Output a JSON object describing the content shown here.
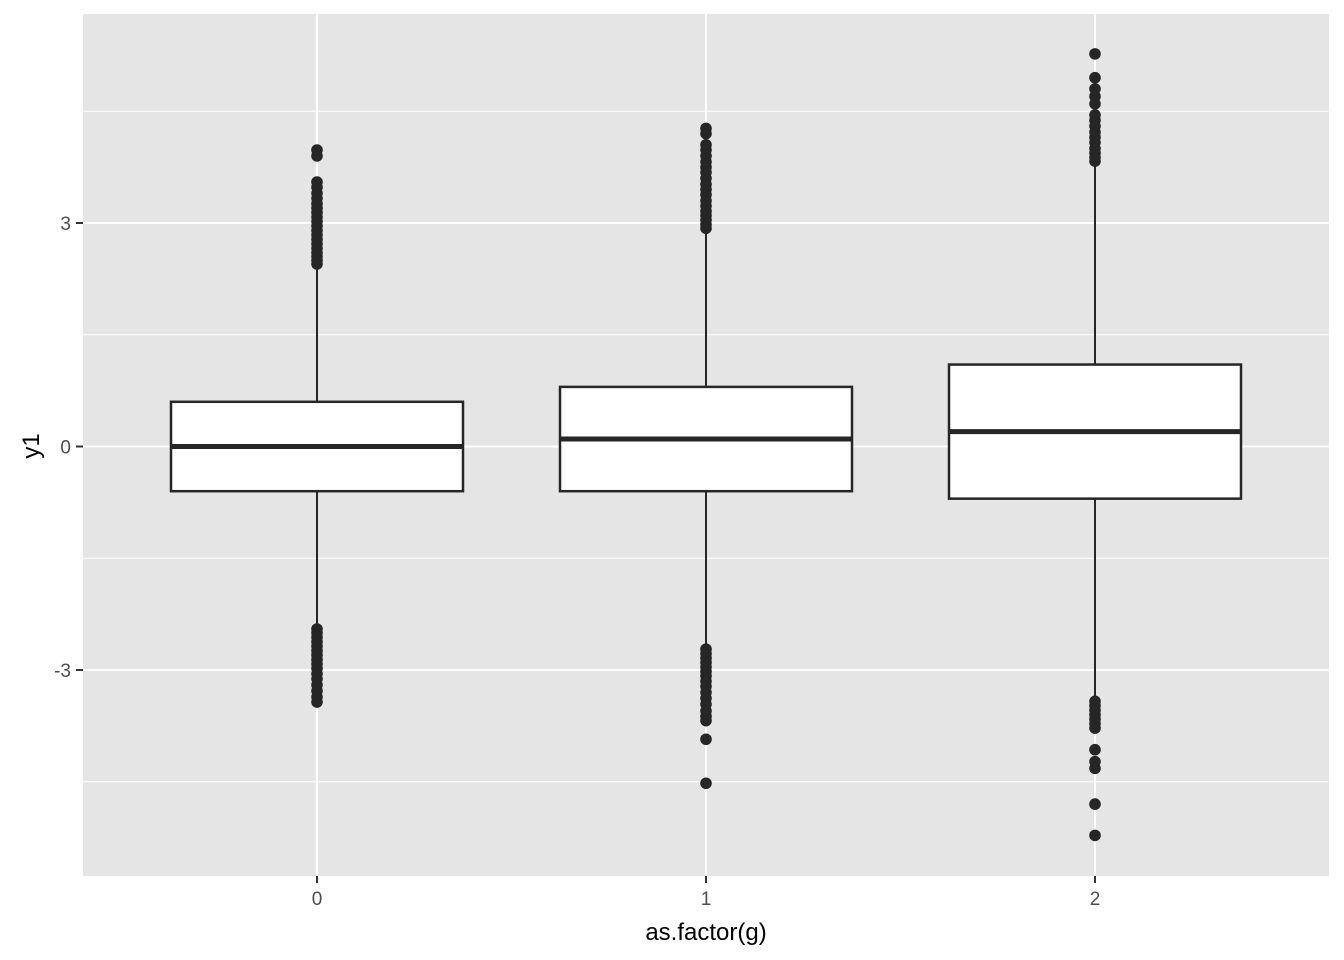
{
  "chart_data": {
    "type": "boxplot",
    "xlabel": "as.factor(g)",
    "ylabel": "y1",
    "categories": [
      "0",
      "1",
      "2"
    ],
    "ylim": [
      -5.7,
      5.8
    ],
    "y_ticks": [
      -3,
      0,
      3
    ],
    "y_tick_labels": [
      "-3",
      "0",
      "3"
    ],
    "grid": true,
    "legend": "none",
    "colors": {
      "panel_background": "#e5e5e5",
      "grid": "#ffffff",
      "box_fill": "#ffffff",
      "box_line": "#262626",
      "outlier": "#262626"
    },
    "boxes": [
      {
        "category": "0",
        "lower_whisker": -2.4,
        "q1": -0.6,
        "median": 0.0,
        "q3": 0.6,
        "upper_whisker": 2.4,
        "outliers": [
          3.98,
          3.9,
          3.55,
          3.48,
          3.4,
          3.33,
          3.26,
          3.2,
          3.14,
          3.08,
          3.02,
          2.96,
          2.9,
          2.84,
          2.78,
          2.72,
          2.66,
          2.6,
          2.55,
          2.5,
          2.45,
          -2.45,
          -2.5,
          -2.56,
          -2.62,
          -2.68,
          -2.74,
          -2.8,
          -2.86,
          -2.92,
          -2.98,
          -3.05,
          -3.12,
          -3.2,
          -3.28,
          -3.36,
          -3.43
        ]
      },
      {
        "category": "1",
        "lower_whisker": -2.7,
        "q1": -0.6,
        "median": 0.1,
        "q3": 0.8,
        "upper_whisker": 2.9,
        "outliers": [
          4.27,
          4.2,
          4.05,
          3.98,
          3.9,
          3.82,
          3.75,
          3.68,
          3.6,
          3.52,
          3.45,
          3.38,
          3.3,
          3.23,
          3.16,
          3.1,
          3.04,
          2.98,
          2.93,
          -2.72,
          -2.78,
          -2.84,
          -2.9,
          -2.96,
          -3.02,
          -3.08,
          -3.15,
          -3.22,
          -3.3,
          -3.38,
          -3.46,
          -3.55,
          -3.62,
          -3.68,
          -3.93,
          -4.52
        ]
      },
      {
        "category": "2",
        "lower_whisker": -3.4,
        "q1": -0.7,
        "median": 0.2,
        "q3": 1.1,
        "upper_whisker": 3.8,
        "outliers": [
          5.27,
          4.95,
          4.8,
          4.7,
          4.6,
          4.45,
          4.38,
          4.3,
          4.22,
          4.15,
          4.08,
          4.0,
          3.94,
          3.88,
          3.83,
          -3.42,
          -3.48,
          -3.54,
          -3.6,
          -3.66,
          -3.72,
          -3.78,
          -4.07,
          -4.23,
          -4.32,
          -4.8,
          -5.22
        ]
      }
    ]
  }
}
